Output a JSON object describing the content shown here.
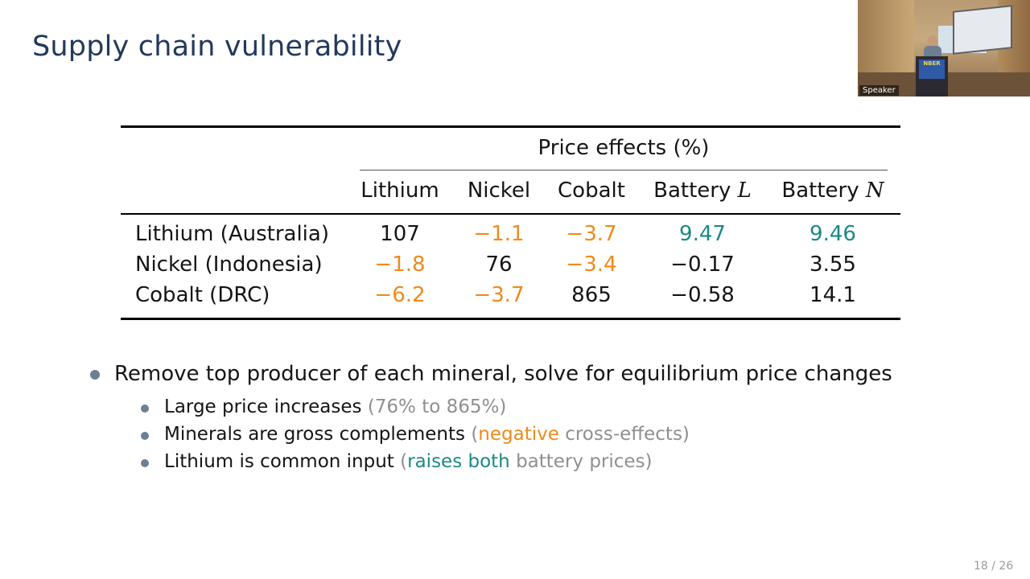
{
  "slide": {
    "title": "Supply chain vulnerability",
    "page_number": "18 / 26"
  },
  "webcam": {
    "label": "Speaker",
    "podium_sign": "NBER"
  },
  "table": {
    "group_header": "Price effects (%)",
    "columns": [
      "Lithium",
      "Nickel",
      "Cobalt",
      "Battery ",
      "Battery "
    ],
    "column_vars": [
      "",
      "",
      "",
      "L",
      "N"
    ],
    "rows": [
      {
        "label": "Lithium (Australia)",
        "values": [
          "107",
          "−1.1",
          "−3.7",
          "9.47",
          "9.46"
        ]
      },
      {
        "label": "Nickel (Indonesia)",
        "values": [
          "−1.8",
          "76",
          "−3.4",
          "−0.17",
          "3.55"
        ]
      },
      {
        "label": "Cobalt (DRC)",
        "values": [
          "−6.2",
          "−3.7",
          "865",
          "−0.58",
          "14.1"
        ]
      }
    ]
  },
  "colors": {
    "negative": "#f08a1c",
    "positive_highlight": "#1a8a84",
    "title": "#23395b"
  },
  "bullets": {
    "main": "Remove top producer of each mineral, solve for equilibrium price changes",
    "sub1_text": "Large price increases ",
    "sub1_note": "(76% to 865%)",
    "sub2_text": "Minerals are gross complements ",
    "sub2_open": "(",
    "sub2_highlight": "negative",
    "sub2_rest": " cross-effects)",
    "sub3_text": "Lithium is common input ",
    "sub3_open": "(",
    "sub3_highlight": "raises both",
    "sub3_rest": " battery prices)"
  }
}
